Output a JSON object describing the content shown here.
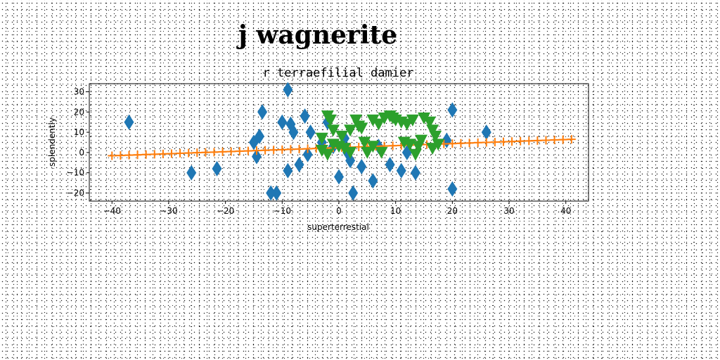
{
  "chart_data": {
    "type": "scatter",
    "title": "j wagnerite",
    "subtitle": "r terraefilial damier",
    "xlabel": "superterrestial",
    "ylabel": "splendently",
    "xlim": [
      -44,
      44
    ],
    "ylim": [
      -24,
      34
    ],
    "xticks": [
      -40,
      -30,
      -20,
      -10,
      0,
      10,
      20,
      30,
      40
    ],
    "yticks": [
      -20,
      -10,
      0,
      10,
      20,
      30
    ],
    "grid": false,
    "series": [
      {
        "marker": "diamond",
        "color": "#1f77b4",
        "points": [
          [
            -37,
            15
          ],
          [
            -26,
            -10
          ],
          [
            -21.5,
            -8
          ],
          [
            -15,
            5
          ],
          [
            -14.5,
            -2
          ],
          [
            -14,
            8
          ],
          [
            -13.5,
            20
          ],
          [
            -12,
            -20
          ],
          [
            -11,
            -20
          ],
          [
            -10,
            15
          ],
          [
            -9,
            -9
          ],
          [
            -8.5,
            14
          ],
          [
            -8,
            10
          ],
          [
            -7,
            -6
          ],
          [
            -6,
            18
          ],
          [
            -5.5,
            -1
          ],
          [
            -5,
            10
          ],
          [
            -9,
            31
          ],
          [
            -3,
            5
          ],
          [
            -2,
            15
          ],
          [
            -1,
            3
          ],
          [
            0,
            -12
          ],
          [
            1,
            7
          ],
          [
            2,
            -4
          ],
          [
            2.5,
            -20
          ],
          [
            4,
            -7
          ],
          [
            6,
            -14
          ],
          [
            7,
            3
          ],
          [
            9,
            -6
          ],
          [
            11,
            -9
          ],
          [
            12,
            0
          ],
          [
            13.5,
            -10
          ],
          [
            19,
            6
          ],
          [
            20,
            21
          ],
          [
            20,
            -18
          ],
          [
            26,
            10
          ],
          [
            -2,
            15
          ],
          [
            1.5,
            0
          ]
        ]
      },
      {
        "marker": "plus",
        "color": "#ff7f0e",
        "line": true,
        "points": [
          [
            -40,
            -1.6
          ],
          [
            -38.5,
            -1.45
          ],
          [
            -37,
            -1.3
          ],
          [
            -35.5,
            -1.15
          ],
          [
            -34,
            -1.0
          ],
          [
            -32.5,
            -0.85
          ],
          [
            -31,
            -0.7
          ],
          [
            -29.5,
            -0.55
          ],
          [
            -28,
            -0.4
          ],
          [
            -26.5,
            -0.25
          ],
          [
            -25,
            -0.1
          ],
          [
            -23.5,
            0.05
          ],
          [
            -22,
            0.2
          ],
          [
            -20.5,
            0.35
          ],
          [
            -19,
            0.5
          ],
          [
            -17.5,
            0.65
          ],
          [
            -16,
            0.8
          ],
          [
            -14.5,
            0.95
          ],
          [
            -13,
            1.1
          ],
          [
            -11.5,
            1.25
          ],
          [
            -10,
            1.4
          ],
          [
            -8.5,
            1.55
          ],
          [
            -7,
            1.7
          ],
          [
            -5.5,
            1.85
          ],
          [
            -4,
            2.0
          ],
          [
            -2.5,
            2.15
          ],
          [
            -1,
            2.3
          ],
          [
            0.5,
            2.45
          ],
          [
            2,
            2.6
          ],
          [
            3.5,
            2.75
          ],
          [
            5,
            2.9
          ],
          [
            6.5,
            3.05
          ],
          [
            8,
            3.2
          ],
          [
            9.5,
            3.35
          ],
          [
            11,
            3.5
          ],
          [
            12.5,
            3.65
          ],
          [
            14,
            3.8
          ],
          [
            15.5,
            3.95
          ],
          [
            17,
            4.1
          ],
          [
            18.5,
            4.25
          ],
          [
            20,
            4.4
          ],
          [
            21.5,
            4.55
          ],
          [
            23,
            4.7
          ],
          [
            24.5,
            4.85
          ],
          [
            26,
            5.0
          ],
          [
            27.5,
            5.15
          ],
          [
            29,
            5.3
          ],
          [
            30.5,
            5.45
          ],
          [
            32,
            5.6
          ],
          [
            33.5,
            5.75
          ],
          [
            35,
            5.9
          ],
          [
            36.5,
            6.05
          ],
          [
            38,
            6.2
          ],
          [
            39.5,
            6.35
          ],
          [
            41,
            6.5
          ]
        ]
      },
      {
        "marker": "triangle-down",
        "color": "#2ca02c",
        "points": [
          [
            -2,
            18
          ],
          [
            -1.5,
            16
          ],
          [
            -1,
            11
          ],
          [
            -3,
            7
          ],
          [
            -3,
            1
          ],
          [
            -2,
            -1
          ],
          [
            -1,
            4
          ],
          [
            0,
            3
          ],
          [
            0.5,
            8
          ],
          [
            1,
            2
          ],
          [
            2,
            0
          ],
          [
            2,
            11
          ],
          [
            3,
            16
          ],
          [
            3.5,
            13
          ],
          [
            4,
            12
          ],
          [
            4.5,
            5
          ],
          [
            5,
            0
          ],
          [
            6,
            16
          ],
          [
            7,
            14
          ],
          [
            7.5,
            0
          ],
          [
            8,
            17
          ],
          [
            9,
            18
          ],
          [
            9.5,
            17
          ],
          [
            10,
            16
          ],
          [
            11,
            15
          ],
          [
            11.5,
            5
          ],
          [
            12,
            14
          ],
          [
            12.5,
            4
          ],
          [
            13,
            16
          ],
          [
            13.5,
            -1
          ],
          [
            14,
            3
          ],
          [
            15,
            17
          ],
          [
            16,
            15
          ],
          [
            16.5,
            11
          ],
          [
            17,
            8
          ],
          [
            17.5,
            4
          ],
          [
            16.5,
            2
          ],
          [
            14.5,
            6
          ],
          [
            6,
            3
          ]
        ]
      }
    ]
  }
}
